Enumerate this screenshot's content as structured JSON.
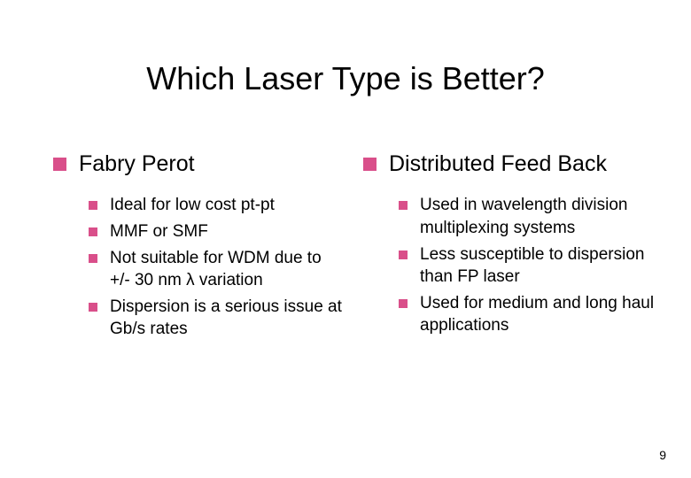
{
  "title": "Which Laser Type is Better?",
  "bullet_color": "#d94f8a",
  "text_color": "#000000",
  "background_color": "#ffffff",
  "title_fontsize": 36,
  "heading_fontsize": 25,
  "item_fontsize": 19,
  "heading_bullet_size": 15,
  "item_bullet_size": 10,
  "left": {
    "heading": "Fabry Perot",
    "items": [
      "Ideal for low cost pt-pt",
      "MMF or SMF",
      "Not suitable for WDM due to +/- 30 nm λ variation",
      "Dispersion is a serious issue at  Gb/s rates"
    ]
  },
  "right": {
    "heading": "Distributed Feed Back",
    "items": [
      "Used in wavelength division multiplexing systems",
      "Less susceptible to dispersion than FP laser",
      "Used for medium and long haul applications"
    ]
  },
  "page_number": "9"
}
